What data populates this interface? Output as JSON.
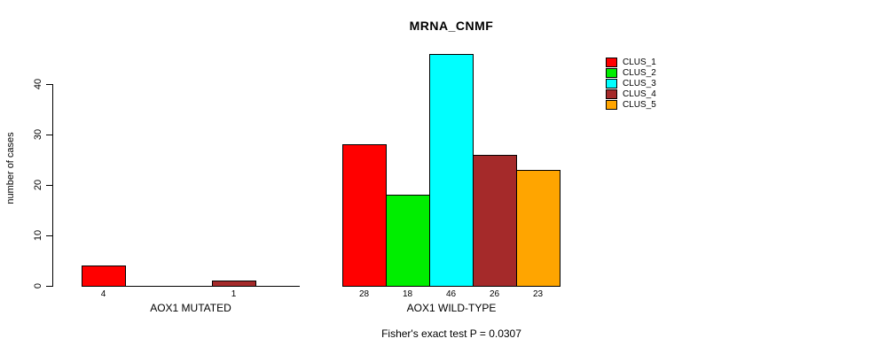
{
  "chart_data": {
    "type": "bar",
    "title": "MRNA_CNMF",
    "ylabel": "number of cases",
    "xlabel": "",
    "categories": [
      "AOX1 MUTATED",
      "AOX1 WILD-TYPE"
    ],
    "series": [
      {
        "name": "CLUS_1",
        "color": "#ff0000",
        "values": [
          4,
          28
        ]
      },
      {
        "name": "CLUS_2",
        "color": "#00ee00",
        "values": [
          0,
          18
        ]
      },
      {
        "name": "CLUS_3",
        "color": "#00ffff",
        "values": [
          0,
          46
        ]
      },
      {
        "name": "CLUS_4",
        "color": "#a52a2a",
        "values": [
          1,
          26
        ]
      },
      {
        "name": "CLUS_5",
        "color": "#ffa500",
        "values": [
          0,
          23
        ]
      }
    ],
    "yticks": [
      0,
      10,
      20,
      30,
      40
    ],
    "ylim": [
      0,
      46
    ],
    "grid": false,
    "legend_position": "right",
    "bar_value_labels": "shown under each nonzero bar",
    "caption": "Fisher's exact test P = 0.0307"
  },
  "legend": {
    "entries": [
      {
        "label": "CLUS_1",
        "color": "#ff0000"
      },
      {
        "label": "CLUS_2",
        "color": "#00ee00"
      },
      {
        "label": "CLUS_3",
        "color": "#00ffff"
      },
      {
        "label": "CLUS_4",
        "color": "#a52a2a"
      },
      {
        "label": "CLUS_5",
        "color": "#ffa500"
      }
    ]
  }
}
